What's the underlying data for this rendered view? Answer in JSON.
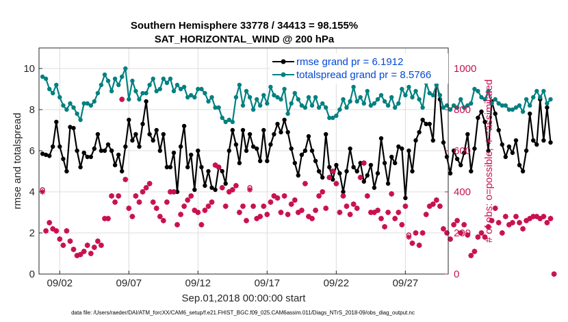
{
  "chart_data": {
    "type": "line",
    "title": "Southern Hemisphere 33778 / 34413 = 98.155%",
    "subtitle": "SAT_HORIZONTAL_WIND @ 200 hPa",
    "xlabel": "Sep.01,2018 00:00:00 start",
    "ylabel": "rmse and totalspread",
    "y2label": "# of obs: o=possible; ∗=assimilated",
    "footnote": "data file: /Users/raeder/DAI/ATM_forcXX/CAM6_setup/f.e21.FHIST_BGC.f09_025.CAM6assim.011/Diags_NTrS_2018-09/obs_diag_output.nc",
    "xlim": [
      0.5,
      30.1
    ],
    "ylim": [
      0,
      11
    ],
    "y2lim": [
      0,
      1100
    ],
    "x_ticks": [
      2,
      7,
      12,
      17,
      22,
      27
    ],
    "x_tick_labels": [
      "09/02",
      "09/07",
      "09/12",
      "09/17",
      "09/22",
      "09/27"
    ],
    "y_ticks": [
      0,
      2,
      4,
      6,
      8,
      10
    ],
    "y_tick_labels": [
      "0",
      "2",
      "4",
      "6",
      "8",
      "10"
    ],
    "y2_ticks": [
      0,
      200,
      400,
      600,
      800,
      1000
    ],
    "y2_tick_labels": [
      "0",
      "200",
      "400",
      "600",
      "800",
      "1000"
    ],
    "grid": true,
    "legend_position": "top-right",
    "series": [
      {
        "name": "rmse grand pr = 6.1912",
        "axis": "left",
        "color": "#000000",
        "marker": "circle",
        "x_start": 0.75,
        "x_step": 0.25,
        "values": [
          5.85,
          5.8,
          5.75,
          6.2,
          7.4,
          6.2,
          5.6,
          5.0,
          7.15,
          7.1,
          6.0,
          5.2,
          5.9,
          5.7,
          5.7,
          6.1,
          6.8,
          6.0,
          6.0,
          6.3,
          6.0,
          5.3,
          5.8,
          5.0,
          6.2,
          7.5,
          6.5,
          6.8,
          6.2,
          7.3,
          8.4,
          6.8,
          6.5,
          7.0,
          6.0,
          6.8,
          5.2,
          5.2,
          5.9,
          4.0,
          6.2,
          7.2,
          5.2,
          5.8,
          4.1,
          6.0,
          5.2,
          4.3,
          5.0,
          4.2,
          4.1,
          5.2,
          5.0,
          4.4,
          6.0,
          7.0,
          6.3,
          5.4,
          7.0,
          6.0,
          6.8,
          6.2,
          6.1,
          5.5,
          7.0,
          5.5,
          6.3,
          6.8,
          7.3,
          6.9,
          7.5,
          6.9,
          6.1,
          5.4,
          4.8,
          5.8,
          6.0,
          6.7,
          6.0,
          5.5,
          5.0,
          4.7,
          6.8,
          5.2,
          4.6,
          5.3,
          4.9,
          4.0,
          5.0,
          6.1,
          5.2,
          5.0,
          5.4,
          4.5,
          4.8,
          5.3,
          4.2,
          4.9,
          6.6,
          5.4,
          4.4,
          5.7,
          5.4,
          6.2,
          6.1,
          3.7,
          6.0,
          5.0,
          6.5,
          6.9,
          7.5,
          7.3,
          7.3,
          6.5,
          9.35,
          8.5,
          6.4,
          5.7,
          4.9,
          6.0,
          5.6,
          5.3,
          5.9,
          6.8,
          5.0,
          6.1,
          7.6,
          7.9,
          7.4,
          6.0,
          8.4,
          7.8,
          7.0,
          6.3,
          5.7,
          6.2,
          5.9,
          6.5,
          5.3,
          5.0,
          6.0,
          7.8,
          6.5,
          6.3,
          8.5,
          6.5,
          8.1,
          6.4
        ]
      },
      {
        "name": "totalspread grand pr = 8.5766",
        "axis": "left",
        "color": "#008080",
        "marker": "circle",
        "x_start": 0.75,
        "x_step": 0.25,
        "values": [
          9.6,
          9.5,
          9.0,
          8.8,
          9.2,
          8.6,
          8.2,
          8.0,
          8.3,
          8.1,
          7.8,
          7.5,
          8.3,
          8.3,
          8.2,
          8.4,
          8.8,
          9.2,
          9.7,
          9.4,
          8.9,
          9.5,
          9.2,
          9.6,
          10.0,
          8.5,
          9.4,
          8.9,
          8.5,
          8.8,
          8.8,
          9.2,
          9.5,
          8.9,
          9.0,
          9.5,
          9.3,
          9.5,
          8.9,
          9.2,
          9.0,
          9.1,
          8.6,
          8.7,
          8.6,
          9.0,
          9.0,
          8.8,
          8.4,
          8.6,
          8.1,
          8.1,
          7.6,
          7.4,
          7.5,
          7.4,
          8.6,
          9.2,
          8.2,
          8.9,
          8.6,
          8.0,
          8.5,
          8.2,
          8.7,
          8.3,
          9.1,
          8.7,
          8.6,
          8.5,
          9.0,
          7.8,
          8.3,
          8.8,
          8.5,
          8.2,
          8.1,
          8.6,
          8.2,
          8.6,
          8.1,
          8.3,
          8.1,
          7.6,
          7.6,
          7.7,
          8.0,
          8.5,
          8.1,
          8.4,
          9.1,
          8.4,
          8.6,
          8.3,
          8.9,
          8.2,
          8.3,
          8.5,
          8.7,
          8.4,
          8.2,
          8.6,
          8.1,
          8.3,
          9.0,
          8.7,
          9.1,
          8.6,
          8.9,
          8.5,
          8.1,
          9.3,
          8.8,
          8.7,
          9.2,
          8.7,
          8.1,
          8.2,
          8.0,
          8.2,
          8.1,
          8.5,
          8.1,
          8.2,
          8.3,
          9.0,
          8.9,
          8.6,
          8.5,
          8.9,
          8.3,
          8.5,
          8.3,
          8.2,
          8.2,
          8.0,
          8.0,
          8.1,
          8.2,
          7.9,
          8.5,
          8.2,
          8.6,
          8.9,
          8.6,
          8.9,
          8.3,
          8.5
        ]
      },
      {
        "name": "# obs possible",
        "axis": "right",
        "color": "#c8104e",
        "marker": "o",
        "x_start": 0.75,
        "x_step": 0.25,
        "values": [
          410,
          210,
          250,
          220,
          210,
          170,
          140,
          210,
          160,
          120,
          90,
          95,
          110,
          140,
          100,
          130,
          160,
          140,
          270,
          270,
          380,
          350,
          380,
          850,
          460,
          320,
          280,
          380,
          350,
          400,
          420,
          440,
          350,
          320,
          280,
          260,
          350,
          400,
          400,
          240,
          290,
          330,
          360,
          380,
          310,
          300,
          240,
          310,
          330,
          350,
          530,
          520,
          420,
          330,
          400,
          410,
          430,
          300,
          330,
          260,
          420,
          330,
          270,
          280,
          330,
          290,
          350,
          380,
          370,
          300,
          380,
          290,
          340,
          360,
          300,
          310,
          440,
          280,
          270,
          310,
          380,
          400,
          320,
          470,
          500,
          440,
          300,
          380,
          330,
          290,
          340,
          320,
          470,
          540,
          380,
          300,
          300,
          310,
          270,
          230,
          300,
          390,
          270,
          300,
          240,
          330,
          190,
          150,
          200,
          140,
          200,
          290,
          330,
          340,
          360,
          330,
          220,
          200,
          170,
          240,
          260,
          200,
          240,
          190,
          90,
          110,
          180,
          200,
          180,
          230,
          260,
          320,
          250,
          200,
          280,
          240,
          250,
          280,
          250,
          220,
          260,
          270,
          280,
          280,
          270,
          280,
          250,
          270,
          0
        ]
      },
      {
        "name": "# obs assimilated",
        "axis": "right",
        "color": "#c8104e",
        "marker": "asterisk",
        "x_start": 0.75,
        "x_step": 0.25,
        "values": [
          400,
          210,
          250,
          220,
          210,
          170,
          140,
          210,
          160,
          120,
          90,
          95,
          110,
          140,
          100,
          130,
          160,
          140,
          270,
          270,
          380,
          350,
          380,
          850,
          460,
          320,
          280,
          380,
          350,
          400,
          420,
          440,
          350,
          320,
          280,
          260,
          350,
          400,
          400,
          240,
          290,
          330,
          360,
          380,
          310,
          300,
          240,
          310,
          330,
          350,
          530,
          520,
          420,
          330,
          400,
          410,
          430,
          300,
          330,
          260,
          410,
          330,
          270,
          280,
          330,
          290,
          350,
          380,
          370,
          300,
          380,
          290,
          340,
          360,
          300,
          310,
          440,
          280,
          270,
          310,
          380,
          400,
          320,
          470,
          500,
          440,
          300,
          380,
          330,
          290,
          340,
          320,
          470,
          540,
          380,
          300,
          300,
          310,
          270,
          230,
          300,
          390,
          270,
          300,
          240,
          330,
          180,
          150,
          200,
          140,
          200,
          290,
          330,
          340,
          360,
          330,
          220,
          200,
          170,
          240,
          260,
          200,
          240,
          190,
          90,
          110,
          180,
          200,
          180,
          230,
          260,
          320,
          250,
          200,
          280,
          240,
          250,
          280,
          250,
          220,
          260,
          270,
          280,
          280,
          270,
          280,
          250,
          270,
          0
        ]
      }
    ]
  }
}
